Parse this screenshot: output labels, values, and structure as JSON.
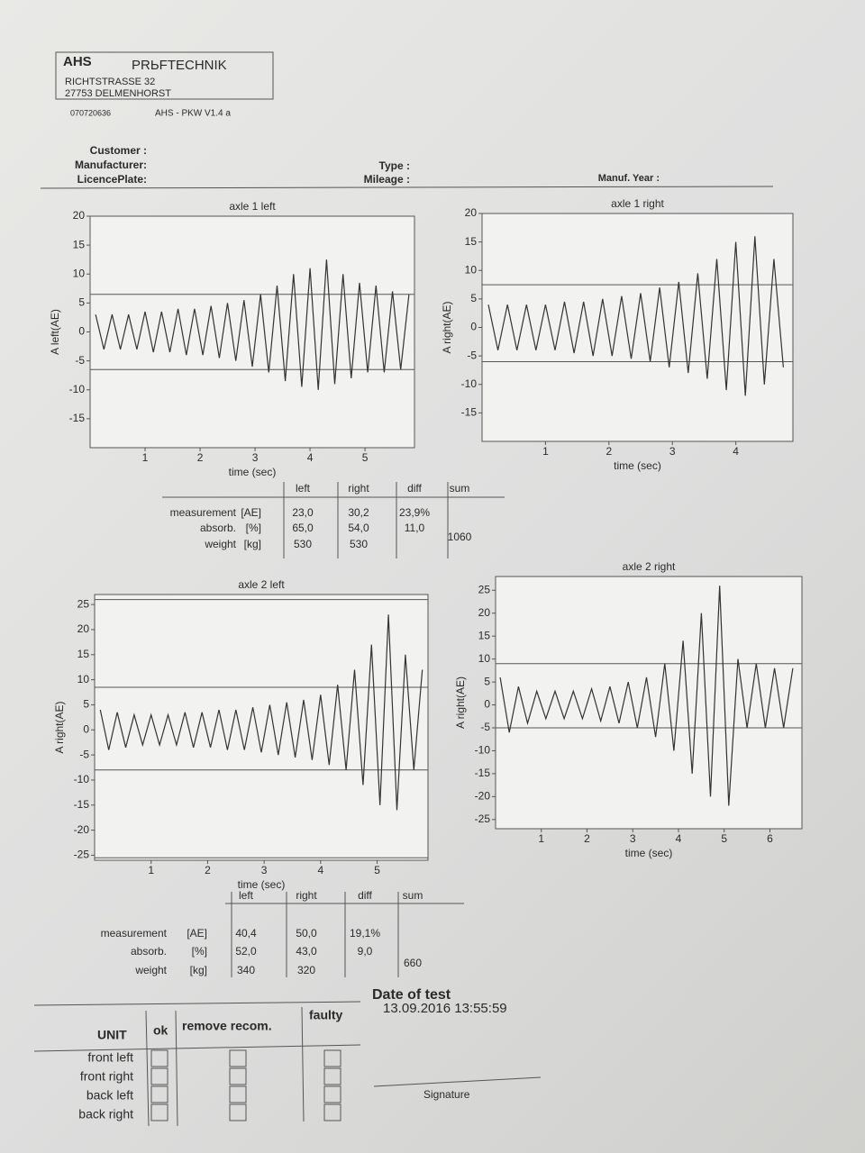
{
  "header": {
    "company": "AHS",
    "company2": "PRЬFTECHNIK",
    "address1": "RICHTSTRASSE 32",
    "address2": "27753 DELMENHORST",
    "code": "070720636",
    "software": "AHS - PKW V1.4 a"
  },
  "fields": {
    "customer": "Customer :",
    "manufacturer": "Manufacturer:",
    "licence_plate": "LicencePlate:",
    "type": "Type :",
    "mileage": "Mileage :",
    "manuf_year": "Manuf. Year :"
  },
  "charts": [
    {
      "type": "line",
      "title": "axle 1 left",
      "x_label": "time (sec)",
      "y_label": "A left(AE)",
      "color": "#333333",
      "xlim": [
        0,
        5.9
      ],
      "xticks": [
        1,
        2,
        3,
        4,
        5
      ],
      "ylim": [
        -20,
        20
      ],
      "yticks": [
        20,
        15,
        10,
        5,
        0,
        -5,
        -10,
        -15
      ],
      "ref_lines": [
        6.5,
        -6.5
      ],
      "x": [
        0.1,
        0.25,
        0.4,
        0.55,
        0.7,
        0.85,
        1.0,
        1.15,
        1.3,
        1.45,
        1.6,
        1.75,
        1.9,
        2.05,
        2.2,
        2.35,
        2.5,
        2.65,
        2.8,
        2.95,
        3.1,
        3.25,
        3.4,
        3.55,
        3.7,
        3.85,
        4.0,
        4.15,
        4.3,
        4.45,
        4.6,
        4.75,
        4.9,
        5.05,
        5.2,
        5.35,
        5.5,
        5.65,
        5.8
      ],
      "values": [
        3,
        -3,
        3,
        -3,
        3,
        -3,
        3.5,
        -3.5,
        3.5,
        -3.5,
        4,
        -4,
        4,
        -4,
        4.5,
        -4.5,
        5,
        -5,
        5.5,
        -6,
        6.5,
        -7,
        8,
        -8.5,
        10,
        -9.5,
        11,
        -10,
        12.5,
        -9,
        10,
        -8,
        8.5,
        -7,
        8,
        -7,
        7,
        -6.5,
        6.5
      ]
    },
    {
      "type": "line",
      "title": "axle 1 right",
      "x_label": "time (sec)",
      "y_label": "A right(AE)",
      "color": "#333333",
      "xlim": [
        0,
        4.9
      ],
      "xticks": [
        1,
        2,
        3,
        4
      ],
      "ylim": [
        -20,
        20
      ],
      "yticks": [
        20,
        15,
        10,
        5,
        0,
        -5,
        -10,
        -15
      ],
      "ref_lines": [
        7.5,
        -6
      ],
      "x": [
        0.1,
        0.25,
        0.4,
        0.55,
        0.7,
        0.85,
        1.0,
        1.15,
        1.3,
        1.45,
        1.6,
        1.75,
        1.9,
        2.05,
        2.2,
        2.35,
        2.5,
        2.65,
        2.8,
        2.95,
        3.1,
        3.25,
        3.4,
        3.55,
        3.7,
        3.85,
        4.0,
        4.15,
        4.3,
        4.45,
        4.6,
        4.75
      ],
      "values": [
        4,
        -4,
        4,
        -4,
        4,
        -4,
        4,
        -4,
        4.5,
        -4.5,
        4.5,
        -5,
        5,
        -5,
        5.5,
        -5.5,
        6,
        -6,
        7,
        -7,
        8,
        -8,
        9.5,
        -9,
        12,
        -11,
        15,
        -12,
        16,
        -10,
        12,
        -7
      ]
    },
    {
      "type": "line",
      "title": "axle 2 left",
      "x_label": "time (sec)",
      "y_label": "A right(AE)",
      "color": "#333333",
      "xlim": [
        0,
        5.9
      ],
      "xticks": [
        1,
        2,
        3,
        4,
        5
      ],
      "ylim": [
        -26,
        27
      ],
      "yticks": [
        25,
        20,
        15,
        10,
        5,
        0,
        -5,
        -10,
        -15,
        -20,
        -25
      ],
      "ref_lines": [
        26,
        8.5,
        -8,
        -25.5
      ],
      "x": [
        0.1,
        0.25,
        0.4,
        0.55,
        0.7,
        0.85,
        1.0,
        1.15,
        1.3,
        1.45,
        1.6,
        1.75,
        1.9,
        2.05,
        2.2,
        2.35,
        2.5,
        2.65,
        2.8,
        2.95,
        3.1,
        3.25,
        3.4,
        3.55,
        3.7,
        3.85,
        4.0,
        4.15,
        4.3,
        4.45,
        4.6,
        4.75,
        4.9,
        5.05,
        5.2,
        5.35,
        5.5,
        5.65,
        5.8
      ],
      "values": [
        4,
        -4,
        3.5,
        -3.5,
        3,
        -3,
        3,
        -3,
        3,
        -3,
        3.5,
        -3.5,
        3.5,
        -3.5,
        4,
        -4,
        4,
        -4,
        4.5,
        -4.5,
        5,
        -5,
        5.5,
        -5.5,
        6,
        -6,
        7,
        -7,
        9,
        -8,
        12,
        -11,
        17,
        -15,
        23,
        -16,
        15,
        -8,
        12
      ]
    },
    {
      "type": "line",
      "title": "axle 2 right",
      "x_label": "time (sec)",
      "y_label": "A right(AE)",
      "color": "#333333",
      "xlim": [
        0,
        6.7
      ],
      "xticks": [
        1,
        2,
        3,
        4,
        5,
        6
      ],
      "ylim": [
        -27,
        28
      ],
      "yticks": [
        25,
        20,
        15,
        10,
        5,
        0,
        -5,
        -10,
        -15,
        -20,
        -25
      ],
      "ref_lines": [
        9,
        -5
      ],
      "x": [
        0.1,
        0.3,
        0.5,
        0.7,
        0.9,
        1.1,
        1.3,
        1.5,
        1.7,
        1.9,
        2.1,
        2.3,
        2.5,
        2.7,
        2.9,
        3.1,
        3.3,
        3.5,
        3.7,
        3.9,
        4.1,
        4.3,
        4.5,
        4.7,
        4.9,
        5.1,
        5.3,
        5.5,
        5.7,
        5.9,
        6.1,
        6.3,
        6.5
      ],
      "values": [
        6,
        -6,
        4,
        -4,
        3,
        -3,
        3,
        -3,
        3,
        -3,
        3.5,
        -3.5,
        4,
        -4,
        5,
        -5,
        6,
        -7,
        9,
        -10,
        14,
        -15,
        20,
        -20,
        26,
        -22,
        10,
        -5,
        9,
        -5,
        8,
        -5,
        8
      ]
    }
  ],
  "tables": [
    {
      "columns": {
        "left": "left",
        "right": "right",
        "diff": "diff",
        "sum": "sum"
      },
      "rows": [
        {
          "label": "measurement",
          "unit": "[AE]",
          "left": "23,0",
          "right": "30,2",
          "diff": "23,9%"
        },
        {
          "label": "absorb.",
          "unit": "[%]",
          "left": "65,0",
          "right": "54,0",
          "diff": "11,0"
        },
        {
          "label": "weight",
          "unit": "[kg]",
          "left": "530",
          "right": "530",
          "sum": "1060"
        }
      ]
    },
    {
      "columns": {
        "left": "left",
        "right": "right",
        "diff": "diff",
        "sum": "sum"
      },
      "rows": [
        {
          "label": "measurement",
          "unit": "[AE]",
          "left": "40,4",
          "right": "50,0",
          "diff": "19,1%"
        },
        {
          "label": "absorb.",
          "unit": "[%]",
          "left": "52,0",
          "right": "43,0",
          "diff": "9,0"
        },
        {
          "label": "weight",
          "unit": "[kg]",
          "left": "340",
          "right": "320",
          "sum": "660"
        }
      ]
    }
  ],
  "footer": {
    "unit_header": "UNIT",
    "ok": "ok",
    "remove": "remove recom.",
    "faulty": "faulty",
    "units": [
      "front left",
      "front right",
      "back left",
      "back right"
    ],
    "date_label": "Date of test",
    "date": "13.09.2016 13:55:59",
    "signature": "Signature"
  }
}
